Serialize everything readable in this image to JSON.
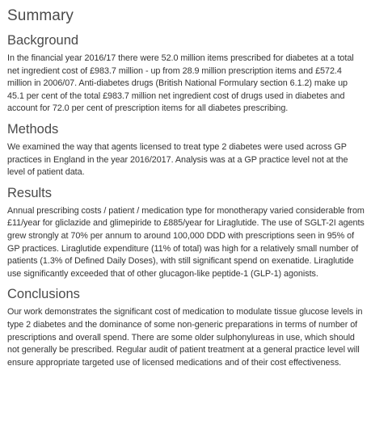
{
  "title": "Summary",
  "sections": [
    {
      "heading": "Background",
      "body": "In the financial year 2016/17 there were 52.0 million items prescribed for diabetes at a total net ingredient cost of £983.7 million - up from 28.9 million prescription items and £572.4 million in 2006/07. Anti-diabetes drugs (British National Formulary section 6.1.2) make up 45.1 per cent of the total £983.7 million net ingredient cost of drugs used in diabetes and account for 72.0 per cent of prescription items for all diabetes prescribing."
    },
    {
      "heading": "Methods",
      "body": "We examined the way that agents licensed to treat type 2 diabetes were used across GP practices in England in the year 2016/2017. Analysis was at a GP practice level not at the level of patient data."
    },
    {
      "heading": "Results",
      "body": "Annual prescribing costs / patient / medication type for monotherapy varied considerable from £11/year for gliclazide and glimepiride to £885/year for Liraglutide. The use of SGLT-2I agents grew strongly at 70% per annum to around 100,000 DDD with prescriptions seen in 95% of GP practices. Liraglutide expenditure (11% of total) was high for a relatively small number of patients (1.3% of Defined Daily Doses), with still significant spend on exenatide. Liraglutide use significantly exceeded that of other glucagon-like peptide-1 (GLP-1) agonists."
    },
    {
      "heading": "Conclusions",
      "body": "Our work demonstrates the significant cost of medication to modulate tissue glucose levels in type 2 diabetes and the dominance of some non-generic preparations in terms of number of prescriptions and overall spend. There are some older sulphonylureas in use, which should not generally be prescribed. Regular audit of patient treatment at a general practice level will ensure appropriate targeted use of licensed medications and of their cost effectiveness."
    }
  ]
}
